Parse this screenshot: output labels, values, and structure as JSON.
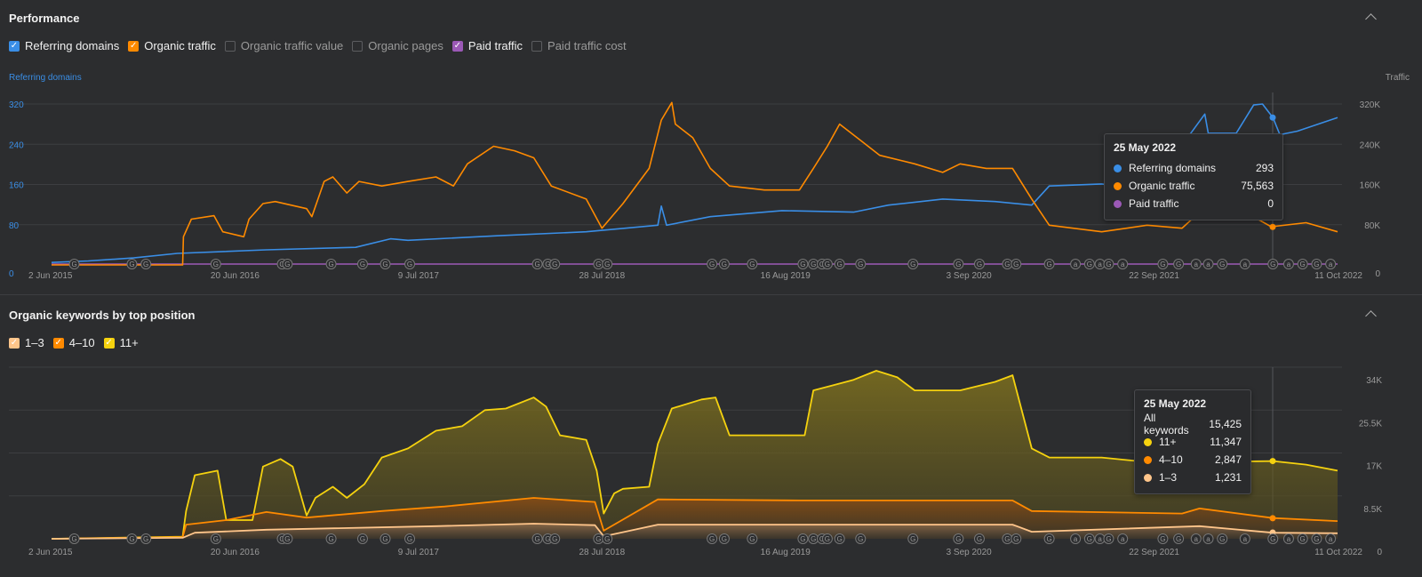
{
  "performance": {
    "title": "Performance",
    "legend": [
      {
        "label": "Referring domains",
        "checked": true,
        "color": "#3a8ee6"
      },
      {
        "label": "Organic traffic",
        "checked": true,
        "color": "#ff8a00"
      },
      {
        "label": "Organic traffic value",
        "checked": false,
        "color": ""
      },
      {
        "label": "Organic pages",
        "checked": false,
        "color": ""
      },
      {
        "label": "Paid traffic",
        "checked": true,
        "color": "#9b59b6"
      },
      {
        "label": "Paid traffic cost",
        "checked": false,
        "color": ""
      }
    ],
    "left_axis_title": "Referring domains",
    "right_axis_title": "Traffic",
    "tooltip": {
      "date": "25 May 2022",
      "rows": [
        {
          "label": "Referring domains",
          "value": "293",
          "color": "#3a8ee6"
        },
        {
          "label": "Organic traffic",
          "value": "75,563",
          "color": "#ff8a00"
        },
        {
          "label": "Paid traffic",
          "value": "0",
          "color": "#9b59b6"
        }
      ]
    }
  },
  "keywords": {
    "title": "Organic keywords by top position",
    "legend": [
      {
        "label": "1–3",
        "checked": true,
        "color": "#ffc58a"
      },
      {
        "label": "4–10",
        "checked": true,
        "color": "#ff8a00"
      },
      {
        "label": "11+",
        "checked": true,
        "color": "#f5d20f"
      }
    ],
    "tooltip": {
      "date": "25 May 2022",
      "all_label": "All keywords",
      "all_value": "15,425",
      "rows": [
        {
          "label": "11+",
          "value": "11,347",
          "color": "#f5d20f"
        },
        {
          "label": "4–10",
          "value": "2,847",
          "color": "#ff8a00"
        },
        {
          "label": "1–3",
          "value": "1,231",
          "color": "#ffc58a"
        }
      ]
    }
  },
  "chart_data": [
    {
      "type": "line",
      "title": "Performance",
      "x_unit": "year (decimal)",
      "xlim": [
        2015.42,
        2022.78
      ],
      "x_ticks": [
        {
          "label": "2 Jun 2015",
          "x": 2015.42
        },
        {
          "label": "20 Jun 2016",
          "x": 2016.47
        },
        {
          "label": "9 Jul 2017",
          "x": 2017.52
        },
        {
          "label": "28 Jul 2018",
          "x": 2018.57
        },
        {
          "label": "16 Aug 2019",
          "x": 2019.62
        },
        {
          "label": "3 Sep 2020",
          "x": 2020.67
        },
        {
          "label": "22 Sep 2021",
          "x": 2021.73
        },
        {
          "label": "11 Oct 2022",
          "x": 2022.78
        }
      ],
      "left_ticks": [
        "320",
        "240",
        "160",
        "80",
        "0"
      ],
      "right_ticks": [
        "320K",
        "240K",
        "160K",
        "80K",
        "0"
      ],
      "ylim": [
        0,
        320
      ],
      "ylabel_left": "Referring domains",
      "ylabel_right": "Traffic (K)",
      "series": [
        {
          "name": "Organic traffic",
          "unit": "K",
          "color": "#ff8a00",
          "points": [
            [
              2015.42,
              0
            ],
            [
              2016.17,
              0
            ],
            [
              2016.175,
              56
            ],
            [
              2016.22,
              91
            ],
            [
              2016.35,
              98
            ],
            [
              2016.4,
              66
            ],
            [
              2016.52,
              56
            ],
            [
              2016.55,
              91
            ],
            [
              2016.63,
              122
            ],
            [
              2016.7,
              126
            ],
            [
              2016.88,
              112
            ],
            [
              2016.91,
              96
            ],
            [
              2016.98,
              166
            ],
            [
              2017.03,
              175
            ],
            [
              2017.11,
              143
            ],
            [
              2017.18,
              166
            ],
            [
              2017.31,
              157
            ],
            [
              2017.46,
              166
            ],
            [
              2017.62,
              175
            ],
            [
              2017.72,
              157
            ],
            [
              2017.8,
              201
            ],
            [
              2017.95,
              236
            ],
            [
              2018.07,
              227
            ],
            [
              2018.18,
              213
            ],
            [
              2018.28,
              157
            ],
            [
              2018.48,
              131
            ],
            [
              2018.57,
              73
            ],
            [
              2018.69,
              122
            ],
            [
              2018.84,
              192
            ],
            [
              2018.91,
              288
            ],
            [
              2018.97,
              323
            ],
            [
              2018.99,
              280
            ],
            [
              2019.09,
              253
            ],
            [
              2019.19,
              192
            ],
            [
              2019.3,
              157
            ],
            [
              2019.5,
              149
            ],
            [
              2019.7,
              149
            ],
            [
              2019.78,
              192
            ],
            [
              2019.86,
              236
            ],
            [
              2019.93,
              280
            ],
            [
              2020.06,
              245
            ],
            [
              2020.16,
              218
            ],
            [
              2020.36,
              201
            ],
            [
              2020.52,
              184
            ],
            [
              2020.62,
              201
            ],
            [
              2020.77,
              192
            ],
            [
              2020.92,
              192
            ],
            [
              2021.03,
              131
            ],
            [
              2021.13,
              79
            ],
            [
              2021.43,
              66
            ],
            [
              2021.69,
              79
            ],
            [
              2021.89,
              73
            ],
            [
              2021.99,
              105
            ],
            [
              2022.09,
              122
            ],
            [
              2022.25,
              105
            ],
            [
              2022.4,
              76
            ],
            [
              2022.6,
              84
            ],
            [
              2022.78,
              66
            ]
          ]
        },
        {
          "name": "Referring domains",
          "unit": "domains",
          "color": "#3a8ee6",
          "points": [
            [
              2015.42,
              5
            ],
            [
              2015.63,
              8
            ],
            [
              2015.89,
              14
            ],
            [
              2016.14,
              23
            ],
            [
              2016.65,
              30
            ],
            [
              2017.16,
              35
            ],
            [
              2017.36,
              52
            ],
            [
              2017.46,
              49
            ],
            [
              2017.97,
              58
            ],
            [
              2018.48,
              66
            ],
            [
              2018.89,
              79
            ],
            [
              2018.91,
              117
            ],
            [
              2018.94,
              79
            ],
            [
              2019.19,
              96
            ],
            [
              2019.6,
              108
            ],
            [
              2020.01,
              105
            ],
            [
              2020.21,
              119
            ],
            [
              2020.52,
              131
            ],
            [
              2020.82,
              126
            ],
            [
              2021.03,
              119
            ],
            [
              2021.13,
              157
            ],
            [
              2021.43,
              161
            ],
            [
              2021.69,
              149
            ],
            [
              2021.94,
              262
            ],
            [
              2022.02,
              300
            ],
            [
              2022.04,
              262
            ],
            [
              2022.2,
              262
            ],
            [
              2022.3,
              318
            ],
            [
              2022.35,
              320
            ],
            [
              2022.41,
              293
            ],
            [
              2022.45,
              259
            ],
            [
              2022.55,
              266
            ],
            [
              2022.78,
              293
            ]
          ]
        },
        {
          "name": "Paid traffic",
          "unit": "K",
          "color": "#9b59b6",
          "points": [
            [
              2015.42,
              0
            ],
            [
              2022.78,
              0
            ]
          ]
        }
      ],
      "annotations": [
        [
          2015.55,
          "G"
        ],
        [
          2015.88,
          "G"
        ],
        [
          2015.96,
          "G"
        ],
        [
          2016.36,
          "G"
        ],
        [
          2016.74,
          "G"
        ],
        [
          2016.77,
          "G"
        ],
        [
          2017.02,
          "G"
        ],
        [
          2017.2,
          "G"
        ],
        [
          2017.33,
          "G"
        ],
        [
          2017.47,
          "G"
        ],
        [
          2018.2,
          "G"
        ],
        [
          2018.26,
          "G"
        ],
        [
          2018.3,
          "G"
        ],
        [
          2018.55,
          "G"
        ],
        [
          2018.6,
          "G"
        ],
        [
          2019.2,
          "G"
        ],
        [
          2019.27,
          "G"
        ],
        [
          2019.43,
          "G"
        ],
        [
          2019.72,
          "G"
        ],
        [
          2019.78,
          "G"
        ],
        [
          2019.83,
          "G"
        ],
        [
          2019.86,
          "G"
        ],
        [
          2019.93,
          "G"
        ],
        [
          2020.05,
          "G"
        ],
        [
          2020.35,
          "G"
        ],
        [
          2020.61,
          "G"
        ],
        [
          2020.73,
          "G"
        ],
        [
          2020.89,
          "G"
        ],
        [
          2020.94,
          "G"
        ],
        [
          2021.13,
          "G"
        ],
        [
          2021.28,
          "a"
        ],
        [
          2021.36,
          "G"
        ],
        [
          2021.42,
          "a"
        ],
        [
          2021.47,
          "G"
        ],
        [
          2021.55,
          "a"
        ],
        [
          2021.78,
          "G"
        ],
        [
          2021.87,
          "G"
        ],
        [
          2021.97,
          "a"
        ],
        [
          2022.04,
          "a"
        ],
        [
          2022.12,
          "G"
        ],
        [
          2022.25,
          "a"
        ],
        [
          2022.41,
          "G"
        ],
        [
          2022.5,
          "a"
        ],
        [
          2022.58,
          "G"
        ],
        [
          2022.66,
          "G"
        ],
        [
          2022.74,
          "a"
        ]
      ]
    },
    {
      "type": "area",
      "title": "Organic keywords by top position",
      "stacked": true,
      "values_are_cumulative": true,
      "x_unit": "year (decimal)",
      "xlim": [
        2015.42,
        2022.78
      ],
      "ylim": [
        0,
        34
      ],
      "y_unit": "K",
      "right_ticks": [
        "34K",
        "25.5K",
        "17K",
        "8.5K",
        "0"
      ],
      "series": [
        {
          "name": "11+",
          "color": "#f5d20f",
          "points": [
            [
              2015.42,
              0
            ],
            [
              2016.17,
              0.4
            ],
            [
              2016.19,
              5.5
            ],
            [
              2016.24,
              12.6
            ],
            [
              2016.37,
              13.5
            ],
            [
              2016.42,
              3.7
            ],
            [
              2016.57,
              3.7
            ],
            [
              2016.63,
              14.3
            ],
            [
              2016.73,
              15.8
            ],
            [
              2016.8,
              14.3
            ],
            [
              2016.88,
              4.6
            ],
            [
              2016.93,
              8.1
            ],
            [
              2017.03,
              10.3
            ],
            [
              2017.11,
              8.1
            ],
            [
              2017.21,
              10.8
            ],
            [
              2017.31,
              16.1
            ],
            [
              2017.46,
              17.9
            ],
            [
              2017.62,
              21.4
            ],
            [
              2017.77,
              22.3
            ],
            [
              2017.9,
              25.5
            ],
            [
              2018.02,
              25.8
            ],
            [
              2018.18,
              28.0
            ],
            [
              2018.25,
              26.2
            ],
            [
              2018.33,
              20.5
            ],
            [
              2018.48,
              19.6
            ],
            [
              2018.54,
              13.5
            ],
            [
              2018.58,
              5.0
            ],
            [
              2018.64,
              9.0
            ],
            [
              2018.69,
              9.9
            ],
            [
              2018.84,
              10.3
            ],
            [
              2018.89,
              18.8
            ],
            [
              2018.97,
              25.8
            ],
            [
              2019.14,
              27.6
            ],
            [
              2019.22,
              28.0
            ],
            [
              2019.3,
              20.5
            ],
            [
              2019.5,
              20.5
            ],
            [
              2019.73,
              20.5
            ],
            [
              2019.78,
              29.4
            ],
            [
              2019.88,
              30.3
            ],
            [
              2020.01,
              31.5
            ],
            [
              2020.14,
              33.3
            ],
            [
              2020.26,
              32.0
            ],
            [
              2020.36,
              29.4
            ],
            [
              2020.62,
              29.4
            ],
            [
              2020.82,
              31.1
            ],
            [
              2020.92,
              32.4
            ],
            [
              2021.03,
              17.9
            ],
            [
              2021.13,
              16.1
            ],
            [
              2021.43,
              16.1
            ],
            [
              2021.69,
              15.2
            ],
            [
              2021.99,
              15.2
            ],
            [
              2022.41,
              15.4
            ],
            [
              2022.6,
              14.7
            ],
            [
              2022.78,
              13.5
            ]
          ]
        },
        {
          "name": "4–10",
          "color": "#ff8a00",
          "points": [
            [
              2015.42,
              0
            ],
            [
              2016.17,
              0.3
            ],
            [
              2016.19,
              2.8
            ],
            [
              2016.42,
              3.7
            ],
            [
              2016.65,
              5.3
            ],
            [
              2016.88,
              4.2
            ],
            [
              2017.31,
              5.5
            ],
            [
              2017.67,
              6.4
            ],
            [
              2018.18,
              8.1
            ],
            [
              2018.53,
              7.3
            ],
            [
              2018.58,
              1.6
            ],
            [
              2018.89,
              7.8
            ],
            [
              2019.71,
              7.6
            ],
            [
              2020.92,
              7.6
            ],
            [
              2021.03,
              5.5
            ],
            [
              2021.89,
              5.0
            ],
            [
              2021.99,
              6.0
            ],
            [
              2022.41,
              4.1
            ],
            [
              2022.78,
              3.5
            ]
          ]
        },
        {
          "name": "1–3",
          "color": "#ffc58a",
          "points": [
            [
              2015.42,
              0
            ],
            [
              2016.17,
              0.2
            ],
            [
              2016.24,
              1.2
            ],
            [
              2016.65,
              1.8
            ],
            [
              2017.62,
              2.5
            ],
            [
              2018.18,
              3.0
            ],
            [
              2018.53,
              2.7
            ],
            [
              2018.58,
              0.5
            ],
            [
              2018.89,
              2.8
            ],
            [
              2020.92,
              2.8
            ],
            [
              2021.03,
              1.4
            ],
            [
              2021.99,
              2.5
            ],
            [
              2022.41,
              1.2
            ],
            [
              2022.78,
              1.1
            ]
          ]
        }
      ]
    }
  ]
}
